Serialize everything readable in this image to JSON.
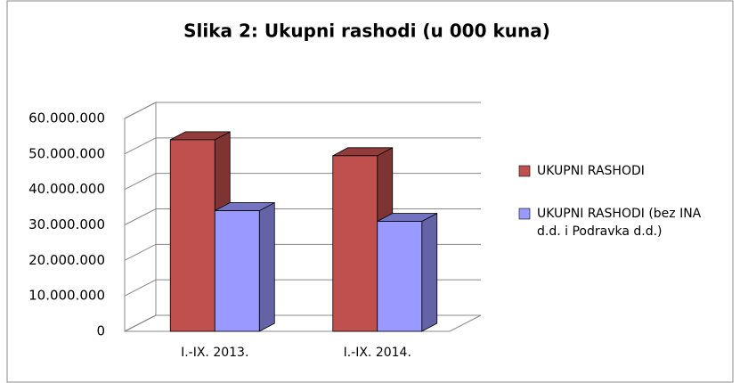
{
  "chart_data": {
    "type": "bar3d",
    "title": "Slika 2: Ukupni rashodi (u 000 kuna)",
    "categories": [
      "I.-IX. 2013.",
      "I.-IX. 2014."
    ],
    "series": [
      {
        "name": "UKUPNI RASHODI",
        "color": "#c0504d",
        "values": [
          54000000,
          49500000
        ]
      },
      {
        "name": "UKUPNI RASHODI (bez INA d.d. i Podravka d.d.)",
        "color": "#9999ff",
        "values": [
          34000000,
          31000000
        ]
      }
    ],
    "ylim": [
      0,
      60000000
    ],
    "yticks": [
      0,
      {
        "value": 10000000,
        "label": "10.000.000"
      },
      {
        "value": 20000000,
        "label": "20.000.000"
      },
      {
        "value": 30000000,
        "label": "30.000.000"
      },
      {
        "value": 40000000,
        "label": "40.000.000"
      },
      {
        "value": 50000000,
        "label": "50.000.000"
      },
      {
        "value": 60000000,
        "label": "60.000.000"
      }
    ],
    "grid": true,
    "legend": "right"
  }
}
